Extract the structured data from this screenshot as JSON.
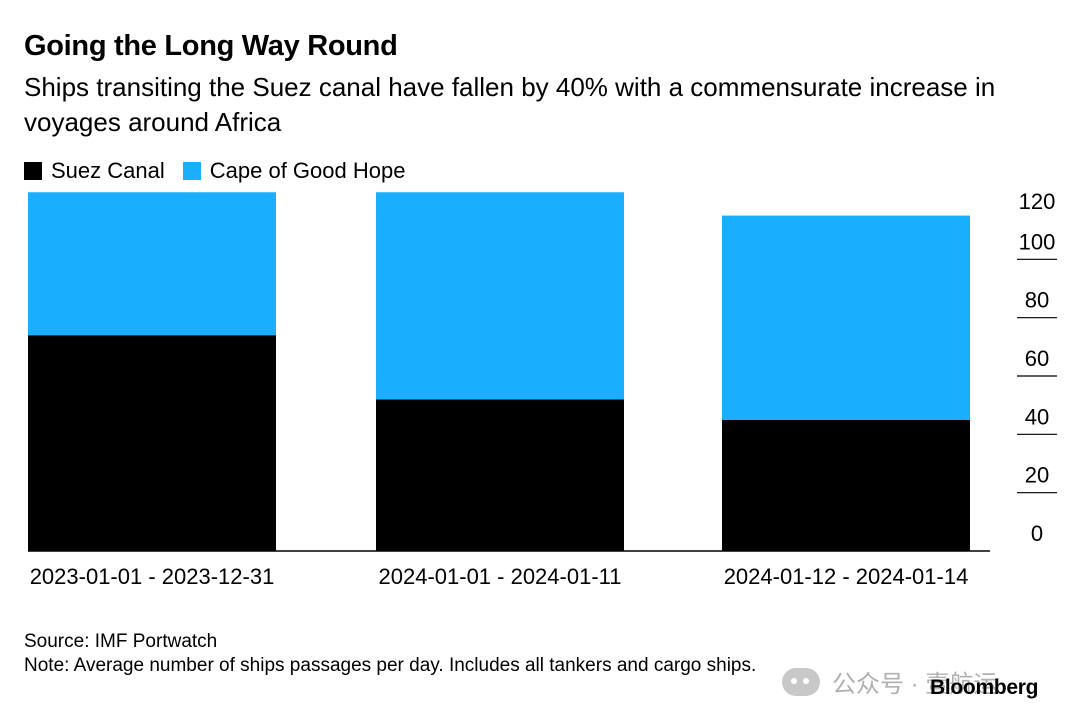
{
  "title": "Going the Long Way Round",
  "subtitle": "Ships transiting the Suez canal have fallen by 40% with a commensurate increase in voyages around Africa",
  "legend": [
    {
      "label": "Suez Canal",
      "color": "#000000"
    },
    {
      "label": "Cape of Good Hope",
      "color": "#1aaeff"
    }
  ],
  "footer": {
    "source": "Source: IMF Portwatch",
    "note": "Note: Average number of ships passages per day. Includes all tankers and cargo ships."
  },
  "watermark": {
    "text": "公众号 · 壹航运",
    "icon": "wechat-icon"
  },
  "brand": "Bloomberg",
  "chart_data": {
    "type": "bar",
    "stacked": true,
    "categories": [
      "2023-01-01 - 2023-12-31",
      "2024-01-01 - 2024-01-11",
      "2024-01-12 - 2024-01-14"
    ],
    "series": [
      {
        "name": "Suez Canal",
        "color": "#000000",
        "values": [
          74,
          52,
          45
        ]
      },
      {
        "name": "Cape of Good Hope",
        "color": "#1aaeff",
        "values": [
          49,
          71,
          70
        ]
      }
    ],
    "yticks": [
      0,
      20,
      40,
      60,
      80,
      100,
      120
    ],
    "ylim": [
      0,
      120
    ],
    "y_axis_position": "right",
    "legend_position": "top-left",
    "grid": false
  }
}
